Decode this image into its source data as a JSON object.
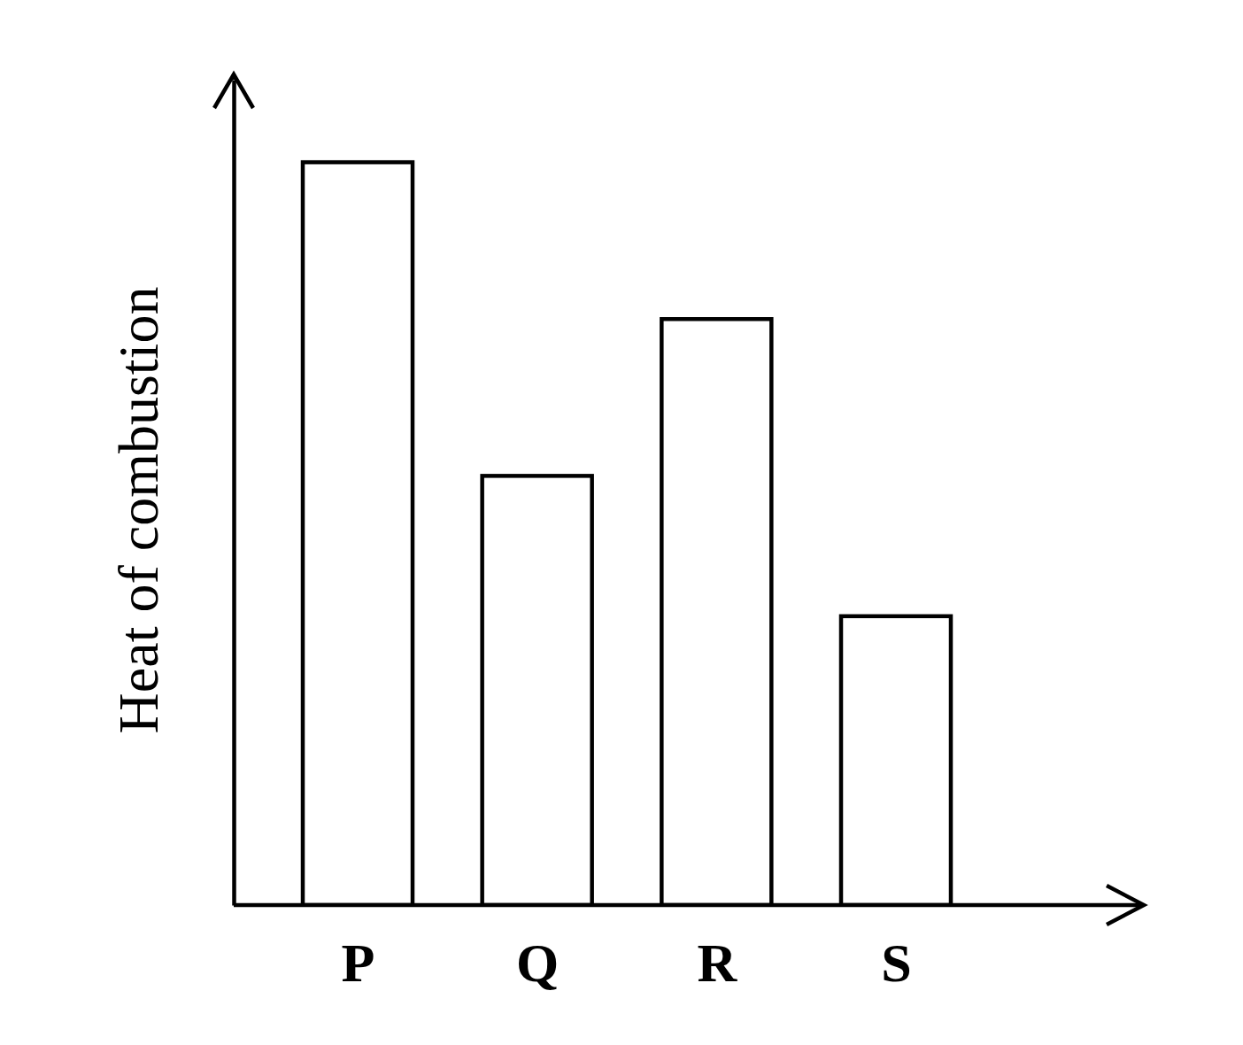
{
  "chart_data": {
    "type": "bar",
    "y_label": "Heat of combustion",
    "categories": [
      "P",
      "Q",
      "R",
      "S"
    ],
    "values": [
      90,
      52,
      71,
      35
    ],
    "color": "#ffffff",
    "ylim": [
      0,
      100
    ],
    "tick_labels": "x",
    "grid": false
  }
}
